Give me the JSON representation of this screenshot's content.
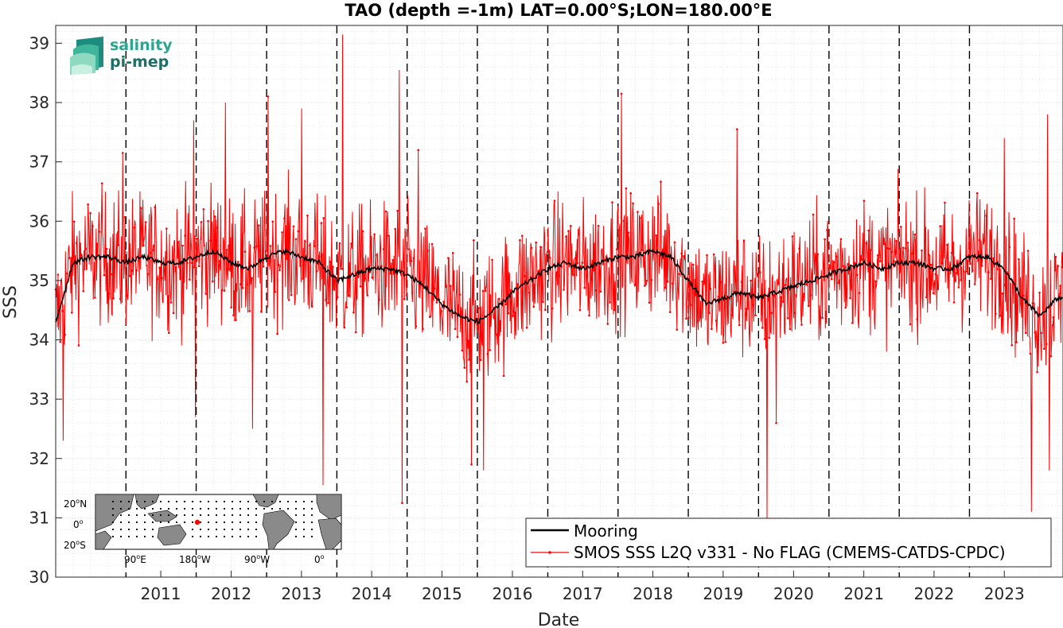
{
  "logo": {
    "line1": "salinity",
    "line2": "pi-mep"
  },
  "chart_data": {
    "type": "line",
    "title": "TAO (depth =-1m) LAT=0.00°S;LON=180.00°E",
    "xlabel": "Date",
    "ylabel": "SSS",
    "xlim": [
      "2010-01-01",
      "2024-05-01"
    ],
    "ylim": [
      30,
      39.3
    ],
    "y_ticks": [
      "30",
      "31",
      "32",
      "33",
      "34",
      "35",
      "36",
      "37",
      "38",
      "39"
    ],
    "x_tick_labels": [
      "2011",
      "2012",
      "2013",
      "2014",
      "2015",
      "2016",
      "2017",
      "2018",
      "2019",
      "2020",
      "2021",
      "2022",
      "2023"
    ],
    "grid": true,
    "legend_position": "bottom-right",
    "colors": {
      "mooring": "#000000",
      "smos": "#ff0000"
    },
    "series": [
      {
        "name": "Mooring",
        "x": [
          "2010-01-01",
          "2010-04-01",
          "2010-07-01",
          "2010-10-01",
          "2011-01-01",
          "2011-04-01",
          "2011-07-01",
          "2011-10-01",
          "2012-01-01",
          "2012-04-01",
          "2012-07-01",
          "2012-10-01",
          "2013-01-01",
          "2013-04-01",
          "2013-07-01",
          "2013-10-01",
          "2014-01-01",
          "2014-04-01",
          "2014-07-01",
          "2014-10-01",
          "2015-01-01",
          "2015-04-01",
          "2015-07-01",
          "2015-10-01",
          "2016-01-01",
          "2016-04-01",
          "2016-07-01",
          "2016-10-01",
          "2017-01-01",
          "2017-04-01",
          "2017-07-01",
          "2017-10-01",
          "2018-01-01",
          "2018-04-01",
          "2018-07-01",
          "2018-10-01",
          "2019-01-01",
          "2019-04-01",
          "2019-07-01",
          "2019-10-01",
          "2020-01-01",
          "2020-04-01",
          "2020-07-01",
          "2020-10-01",
          "2021-01-01",
          "2021-04-01",
          "2021-07-01",
          "2021-10-01",
          "2022-01-01",
          "2022-04-01",
          "2022-07-01",
          "2022-10-01",
          "2023-01-01",
          "2023-04-01",
          "2023-07-01",
          "2023-10-01",
          "2024-01-01",
          "2024-04-01"
        ],
        "y": [
          34.3,
          35.3,
          35.4,
          35.4,
          35.3,
          35.4,
          35.3,
          35.3,
          35.4,
          35.5,
          35.3,
          35.2,
          35.4,
          35.5,
          35.4,
          35.3,
          35.0,
          35.1,
          35.2,
          35.2,
          35.1,
          34.9,
          34.6,
          34.4,
          34.3,
          34.5,
          34.8,
          35.0,
          35.2,
          35.3,
          35.2,
          35.3,
          35.4,
          35.4,
          35.5,
          35.4,
          35.0,
          34.6,
          34.7,
          34.8,
          34.7,
          34.8,
          34.9,
          35.0,
          35.1,
          35.2,
          35.3,
          35.2,
          35.3,
          35.3,
          35.2,
          35.2,
          35.4,
          35.4,
          35.2,
          34.7,
          34.4,
          34.7
        ]
      },
      {
        "name": "SMOS SSS L2Q v331 - No FLAG  (CMEMS-CATDS-CPDC)",
        "mean": [
          34.3,
          35.3,
          35.4,
          35.4,
          35.3,
          35.4,
          35.3,
          35.3,
          35.4,
          35.5,
          35.3,
          35.2,
          35.4,
          35.5,
          35.4,
          35.3,
          35.0,
          35.1,
          35.2,
          35.2,
          35.1,
          34.9,
          34.6,
          34.4,
          34.3,
          34.5,
          34.8,
          35.0,
          35.2,
          35.3,
          35.2,
          35.3,
          35.4,
          35.4,
          35.5,
          35.4,
          35.0,
          34.6,
          34.7,
          34.8,
          34.7,
          34.8,
          34.9,
          35.0,
          35.1,
          35.2,
          35.3,
          35.2,
          35.3,
          35.3,
          35.2,
          35.2,
          35.4,
          35.4,
          35.2,
          34.7,
          34.4,
          34.7
        ],
        "spikes": [
          {
            "x": "2010-02-10",
            "y": 32.3
          },
          {
            "x": "2010-12-15",
            "y": 37.15
          },
          {
            "x": "2011-12-20",
            "y": 37.7
          },
          {
            "x": "2011-12-28",
            "y": 32.7
          },
          {
            "x": "2012-06-01",
            "y": 38.0
          },
          {
            "x": "2012-10-20",
            "y": 32.5
          },
          {
            "x": "2013-01-10",
            "y": 38.1
          },
          {
            "x": "2013-07-01",
            "y": 37.9
          },
          {
            "x": "2013-10-20",
            "y": 31.55
          },
          {
            "x": "2014-02-01",
            "y": 39.15
          },
          {
            "x": "2014-11-20",
            "y": 38.55
          },
          {
            "x": "2014-12-05",
            "y": 31.25
          },
          {
            "x": "2015-03-01",
            "y": 37.2
          },
          {
            "x": "2015-12-01",
            "y": 31.9
          },
          {
            "x": "2016-02-01",
            "y": 31.8
          },
          {
            "x": "2018-01-20",
            "y": 38.15
          },
          {
            "x": "2019-09-10",
            "y": 37.55
          },
          {
            "x": "2020-02-15",
            "y": 30.95
          },
          {
            "x": "2020-04-01",
            "y": 32.6
          },
          {
            "x": "2023-07-01",
            "y": 37.4
          },
          {
            "x": "2023-11-20",
            "y": 31.1
          },
          {
            "x": "2024-02-10",
            "y": 37.8
          },
          {
            "x": "2024-02-20",
            "y": 31.8
          }
        ]
      }
    ]
  },
  "inset_map": {
    "lat_labels": [
      "20",
      "0",
      "20"
    ],
    "lat_suffixes": [
      "N",
      "",
      "S"
    ],
    "lon_labels": [
      "90",
      "180",
      "90",
      "0"
    ],
    "lon_suffixes": [
      "E",
      "W",
      "W",
      ""
    ],
    "degree_marker": "o",
    "highlight_color": "#ff0000"
  }
}
